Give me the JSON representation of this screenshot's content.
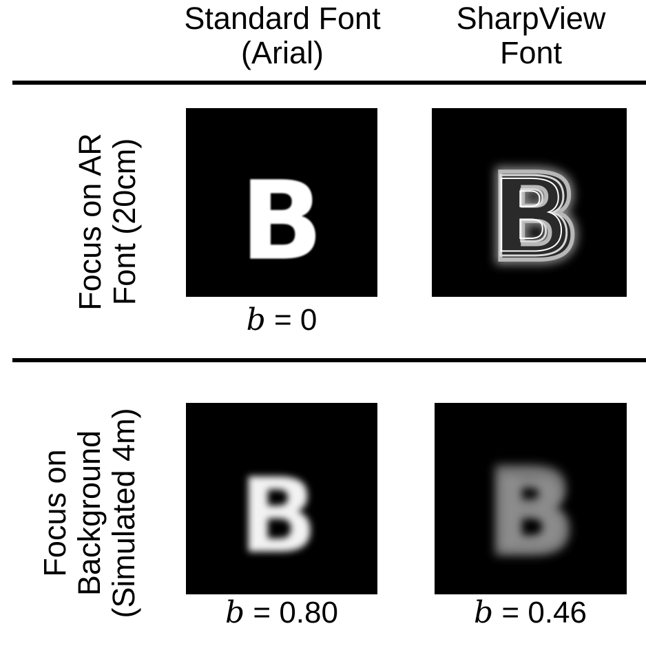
{
  "columns": {
    "standard": {
      "line1": "Standard Font",
      "line2": "(Arial)"
    },
    "sharpview": {
      "line1": "SharpView",
      "line2": "Font"
    }
  },
  "rows": {
    "ar_focus": {
      "line1": "Focus on AR",
      "line2": "Font (20cm)"
    },
    "background_focus": {
      "line1": "Focus on",
      "line2": "Background",
      "line3": "(Simulated 4m)"
    }
  },
  "panels": {
    "glyph": "B",
    "standard_ar": {
      "b_symbol": "b",
      "b_text": " = 0"
    },
    "standard_background": {
      "b_symbol": "b",
      "b_text": " = 0.80"
    },
    "sharpview_background": {
      "b_symbol": "b",
      "b_text": " = 0.46"
    }
  }
}
